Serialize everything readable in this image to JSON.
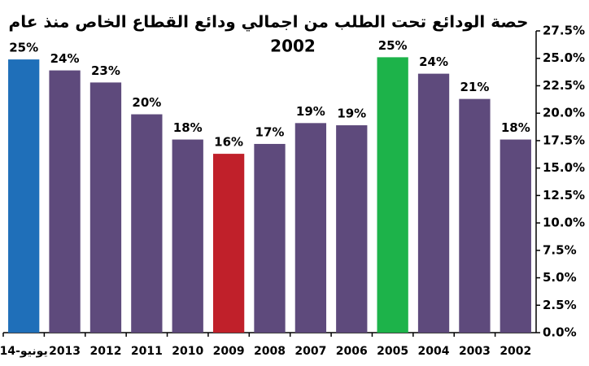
{
  "chart_data": {
    "type": "bar",
    "title": [
      "حصة الودائع تحت الطلب من اجمالي ودائع القطاع الخاص منذ عام",
      "2002"
    ],
    "categories": [
      "يونيو-14",
      "2013",
      "2012",
      "2011",
      "2010",
      "2009",
      "2008",
      "2007",
      "2006",
      "2005",
      "2004",
      "2003",
      "2002"
    ],
    "values": [
      24.9,
      23.9,
      22.8,
      19.9,
      17.6,
      16.3,
      17.2,
      19.1,
      18.9,
      25.1,
      23.6,
      21.3,
      17.6
    ],
    "value_labels": [
      "25%",
      "24%",
      "23%",
      "20%",
      "18%",
      "16%",
      "17%",
      "19%",
      "19%",
      "25%",
      "24%",
      "21%",
      "18%"
    ],
    "colors": [
      "#1f6fb9",
      "#5e4a7c",
      "#5e4a7c",
      "#5e4a7c",
      "#5e4a7c",
      "#c0202a",
      "#5e4a7c",
      "#5e4a7c",
      "#5e4a7c",
      "#1db34a",
      "#5e4a7c",
      "#5e4a7c",
      "#5e4a7c"
    ],
    "ylim": [
      0,
      27.5
    ],
    "yticks": [
      {
        "value": 0,
        "label": "0.0%"
      },
      {
        "value": 2.5,
        "label": "2.5%"
      },
      {
        "value": 5,
        "label": "5.0%"
      },
      {
        "value": 7.5,
        "label": "7.5%"
      },
      {
        "value": 10,
        "label": "10.0%"
      },
      {
        "value": 12.5,
        "label": "12.5%"
      },
      {
        "value": 15,
        "label": "15.0%"
      },
      {
        "value": 17.5,
        "label": "17.5%"
      },
      {
        "value": 20,
        "label": "20.0%"
      },
      {
        "value": 22.5,
        "label": "22.5%"
      },
      {
        "value": 25,
        "label": "25.0%"
      },
      {
        "value": 27.5,
        "label": "27.5%"
      }
    ],
    "y_axis_side": "right",
    "grid": false
  }
}
